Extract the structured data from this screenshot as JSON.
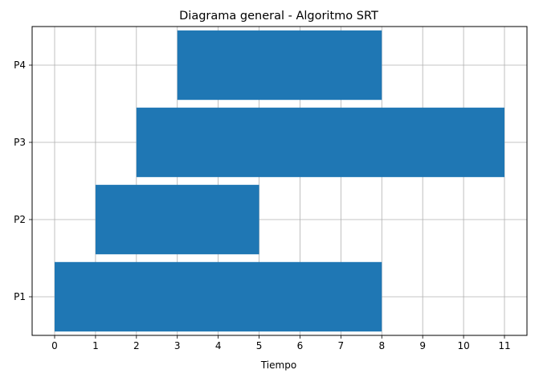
{
  "chart_data": {
    "type": "bar",
    "orientation": "horizontal",
    "title": "Diagrama general - Algoritmo SRT",
    "xlabel": "Tiempo",
    "ylabel": "",
    "categories": [
      "P1",
      "P2",
      "P3",
      "P4"
    ],
    "bars": [
      {
        "label": "P1",
        "start": 0,
        "end": 8
      },
      {
        "label": "P2",
        "start": 1,
        "end": 5
      },
      {
        "label": "P3",
        "start": 2,
        "end": 11
      },
      {
        "label": "P4",
        "start": 3,
        "end": 8
      }
    ],
    "xticks": [
      "0",
      "1",
      "2",
      "3",
      "4",
      "5",
      "6",
      "7",
      "8",
      "9",
      "10",
      "11"
    ],
    "xlim": [
      -0.55,
      11.55
    ],
    "grid": true,
    "bar_color": "#1f77b4"
  }
}
